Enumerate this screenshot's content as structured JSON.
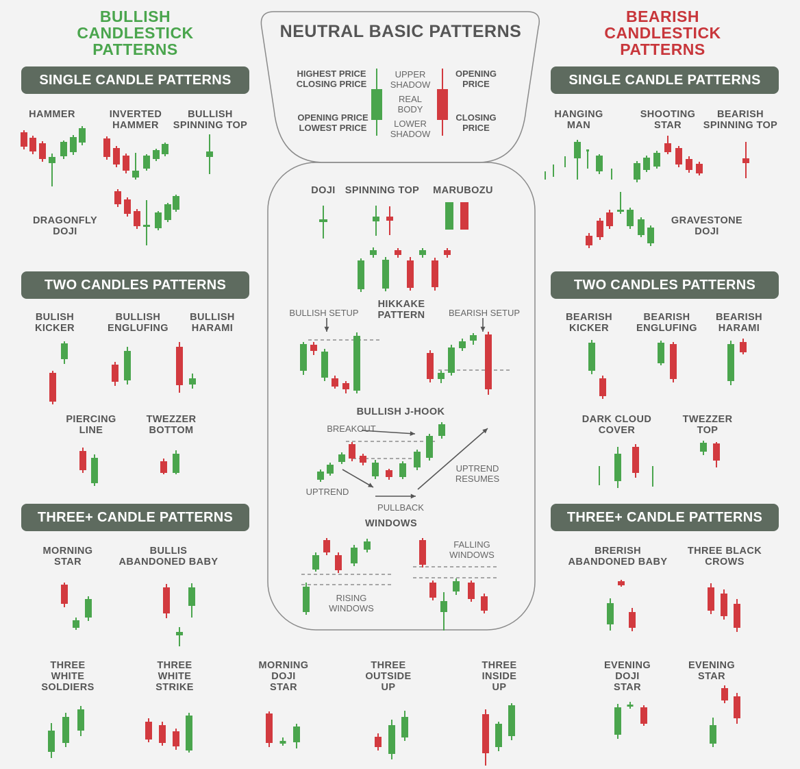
{
  "colors": {
    "bull": "#4aa54d",
    "bear": "#d23a3f",
    "pill": "#5e6b5f",
    "text": "#555555"
  },
  "headers": {
    "bullish": "BULLISH\nCANDLESTICK\nPATTERNS",
    "bearish": "BEARISH\nCANDLESTICK\nPATTERNS",
    "neutral": "NEUTRAL BASIC PATTERNS"
  },
  "sections": {
    "single": "SINGLE CANDLE PATTERNS",
    "two": "TWO CANDLES PATTERNS",
    "three": "THREE+ CANDLE PATTERNS"
  },
  "neutral_basic": {
    "highest_closing": "HIGHEST PRICE\nCLOSING PRICE",
    "opening_lowest": "OPENING PRICE\nLOWEST PRICE",
    "upper_shadow": "UPPER\nSHADOW",
    "real_body": "REAL\nBODY",
    "lower_shadow": "LOWER\nSHADOW",
    "opening_price": "OPENING\nPRICE",
    "closing_price": "CLOSING\nPRICE"
  },
  "bullish_single": {
    "hammer": "HAMMER",
    "inverted_hammer": "INVERTED\nHAMMER",
    "spinning_top": "BULLISH\nSPINNING TOP",
    "dragonfly": "DRAGONFLY\nDOJI"
  },
  "bullish_two": {
    "kicker": "BULISH\nKICKER",
    "engulfing": "BULLISH\nENGLUFING",
    "harami": "BULLISH\nHARAMI",
    "piercing": "PIERCING\nLINE",
    "tweezer": "TWEZZER\nBOTTOM"
  },
  "bullish_three": {
    "morning_star": "MORNING\nSTAR",
    "abandoned": "BULLIS\nABANDONED BABY"
  },
  "bearish_single": {
    "hanging_man": "HANGING\nMAN",
    "shooting_star": "SHOOTING\nSTAR",
    "spinning_top": "BEARISH\nSPINNING TOP",
    "gravestone": "GRAVESTONE\nDOJI"
  },
  "bearish_two": {
    "kicker": "BEARISH\nKICKER",
    "engulfing": "BEARISH\nENGLUFING",
    "harami": "BEARISH\nHARAMI",
    "dark_cloud": "DARK CLOUD\nCOVER",
    "tweezer": "TWEZZER\nTOP"
  },
  "bearish_three": {
    "abandoned": "BRERISH\nABANDONED BABY",
    "three_crows": "THREE BLACK\nCROWS",
    "evening_doji": "EVENING\nDOJI\nSTAR",
    "evening_star": "EVENING\nSTAR"
  },
  "neutral_more": {
    "doji": "DOJI",
    "spinning_top": "SPINNING TOP",
    "marubozu": "MARUBOZU"
  },
  "hikkake": {
    "title": "HIKKAKE\nPATTERN",
    "bullish_setup": "BULLISH SETUP",
    "bearish_setup": "BEARISH SETUP"
  },
  "jhook": {
    "title": "BULLISH J-HOOK",
    "breakout": "BREAKOUT",
    "uptrend": "UPTREND",
    "uptrend_resumes": "UPTREND\nRESUMES",
    "pullback": "PULLBACK"
  },
  "windows": {
    "title": "WINDOWS",
    "falling": "FALLING\nWINDOWS",
    "rising": "RISING\nWINDOWS"
  },
  "bottom_row": {
    "three_white_soldiers": "THREE\nWHITE\nSOLDIERS",
    "three_white_strike": "THREE\nWHITE\nSTRIKE",
    "morning_doji_star": "MORNING\nDOJI\nSTAR",
    "three_outside_up": "THREE\nOUTSIDE\nUP",
    "three_inside_up": "THREE\nINSIDE\nUP"
  }
}
